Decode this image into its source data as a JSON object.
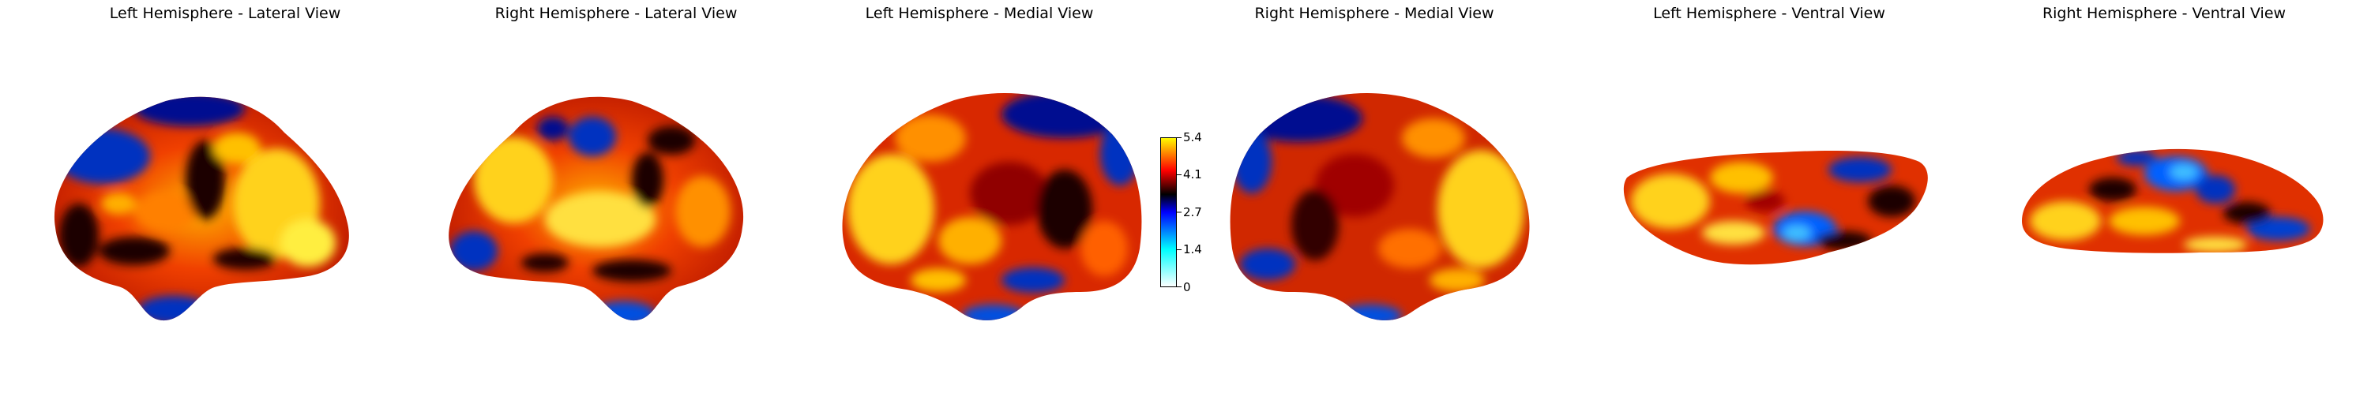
{
  "panels": [
    {
      "title": "Left Hemisphere - Lateral View"
    },
    {
      "title": "Right Hemisphere - Lateral View"
    },
    {
      "title": "Left Hemisphere - Medial View"
    },
    {
      "title": "Right Hemisphere - Medial View"
    },
    {
      "title": "Left Hemisphere - Ventral View"
    },
    {
      "title": "Right Hemisphere - Ventral View"
    }
  ],
  "colorbar": {
    "ticks": [
      "0",
      "1.4",
      "2.7",
      "4.1",
      "5.4"
    ],
    "min": 0,
    "max": 5.4,
    "colormap": [
      "#ffffff",
      "#00ffff",
      "#0000ff",
      "#000000",
      "#ff0000",
      "#ffff00"
    ]
  },
  "colors": {
    "surface_red": "#e63800",
    "surface_yellow": "#ffd21a",
    "surface_dark": "#1a0000",
    "surface_blue": "#0030c0"
  }
}
